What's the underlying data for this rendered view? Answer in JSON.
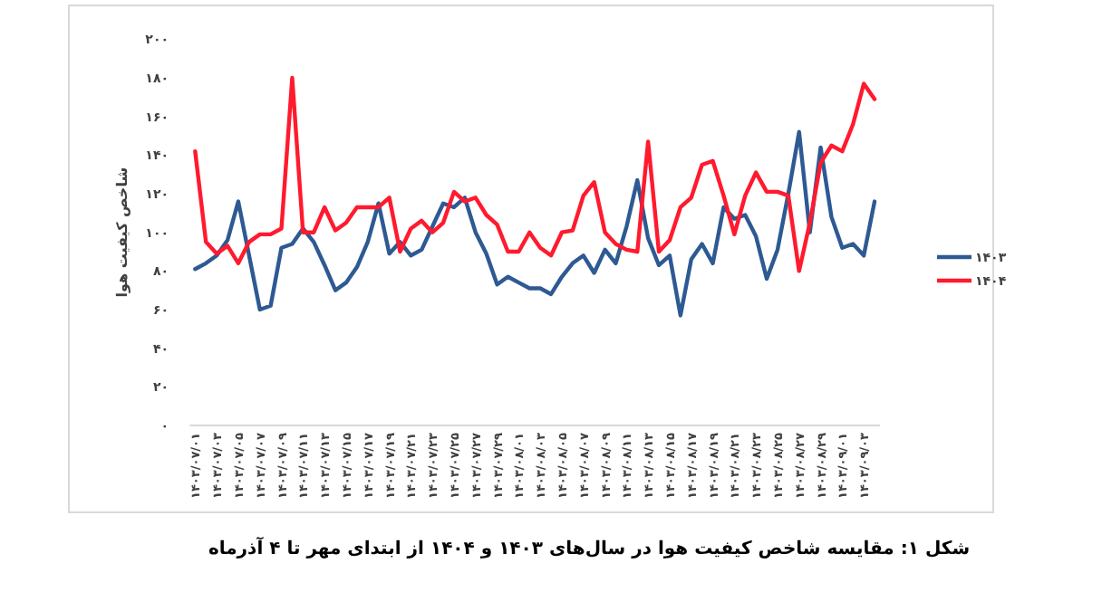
{
  "chart_data": {
    "type": "line",
    "ylabel": "شاخص کیفیت هوا",
    "annotations": [
      "شکل ۱: مقایسه شاخص کیفیت هوا در سال‌های ۱۴۰۳ و ۱۴۰۴ از ابتدای مهر تا ۴ آذرماه"
    ],
    "categories": [
      "۱۴۰۳/۰۷/۰۱",
      null,
      "۱۴۰۳/۰۷/۰۳",
      null,
      "۱۴۰۳/۰۷/۰۵",
      null,
      "۱۴۰۳/۰۷/۰۷",
      null,
      "۱۴۰۳/۰۷/۰۹",
      null,
      "۱۴۰۳/۰۷/۱۱",
      null,
      "۱۴۰۳/۰۷/۱۳",
      null,
      "۱۴۰۳/۰۷/۱۵",
      null,
      "۱۴۰۳/۰۷/۱۷",
      null,
      "۱۴۰۳/۰۷/۱۹",
      null,
      "۱۴۰۳/۰۷/۲۱",
      null,
      "۱۴۰۳/۰۷/۲۳",
      null,
      "۱۴۰۳/۰۷/۲۵",
      null,
      "۱۴۰۳/۰۷/۲۷",
      null,
      "۱۴۰۳/۰۷/۲۹",
      null,
      "۱۴۰۳/۰۸/۰۱",
      null,
      "۱۴۰۳/۰۸/۰۳",
      null,
      "۱۴۰۳/۰۸/۰۵",
      null,
      "۱۴۰۳/۰۸/۰۷",
      null,
      "۱۴۰۳/۰۸/۰۹",
      null,
      "۱۴۰۳/۰۸/۱۱",
      null,
      "۱۴۰۳/۰۸/۱۳",
      null,
      "۱۴۰۳/۰۸/۱۵",
      null,
      "۱۴۰۳/۰۸/۱۷",
      null,
      "۱۴۰۳/۰۸/۱۹",
      null,
      "۱۴۰۳/۰۸/۲۱",
      null,
      "۱۴۰۳/۰۸/۲۳",
      null,
      "۱۴۰۳/۰۸/۲۵",
      null,
      "۱۴۰۳/۰۸/۲۷",
      null,
      "۱۴۰۳/۰۸/۲۹",
      null,
      "۱۴۰۳/۰۹/۰۱",
      null,
      "۱۴۰۳/۰۹/۰۳",
      null
    ],
    "series": [
      {
        "name": "۱۴۰۳",
        "color": "#2e5a93",
        "values": [
          81,
          84,
          88,
          96,
          116,
          88,
          60,
          62,
          92,
          94,
          102,
          95,
          83,
          70,
          74,
          82,
          95,
          115,
          89,
          95,
          88,
          91,
          103,
          115,
          113,
          118,
          100,
          89,
          73,
          77,
          74,
          71,
          71,
          68,
          77,
          84,
          88,
          79,
          91,
          84,
          103,
          127,
          97,
          83,
          88,
          57,
          86,
          94,
          84,
          113,
          107,
          109,
          98,
          76,
          91,
          120,
          152,
          100,
          144,
          108,
          92,
          94,
          88,
          116
        ]
      },
      {
        "name": "۱۴۰۴",
        "color": "#ff1a2e",
        "values": [
          142,
          95,
          89,
          93,
          84,
          95,
          99,
          99,
          102,
          180,
          100,
          100,
          113,
          101,
          105,
          113,
          113,
          113,
          118,
          90,
          102,
          106,
          100,
          105,
          121,
          116,
          118,
          109,
          104,
          90,
          90,
          100,
          92,
          88,
          100,
          101,
          119,
          126,
          100,
          94,
          91,
          90,
          147,
          90,
          96,
          113,
          118,
          135,
          137,
          119,
          99,
          119,
          131,
          121,
          121,
          119,
          80,
          105,
          136,
          145,
          142,
          156,
          177,
          169
        ]
      }
    ],
    "ylim": [
      0,
      200
    ],
    "yticks": [
      {
        "value": 0,
        "label": "۰"
      },
      {
        "value": 20,
        "label": "۲۰"
      },
      {
        "value": 40,
        "label": "۴۰"
      },
      {
        "value": 60,
        "label": "۶۰"
      },
      {
        "value": 80,
        "label": "۸۰"
      },
      {
        "value": 100,
        "label": "۱۰۰"
      },
      {
        "value": 120,
        "label": "۱۲۰"
      },
      {
        "value": 140,
        "label": "۱۴۰"
      },
      {
        "value": 160,
        "label": "۱۶۰"
      },
      {
        "value": 180,
        "label": "۱۸۰"
      },
      {
        "value": 200,
        "label": "۲۰۰"
      }
    ],
    "legend": "right"
  }
}
